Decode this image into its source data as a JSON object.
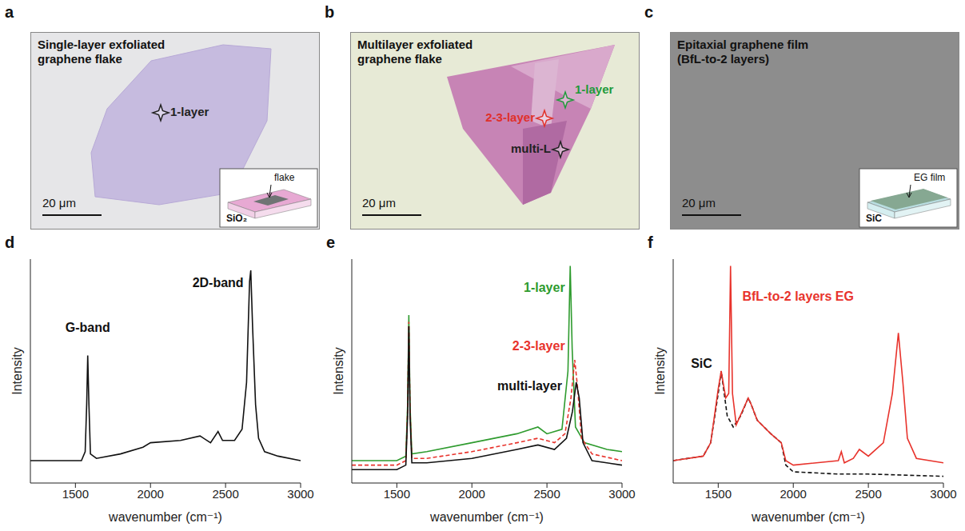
{
  "images": [
    {
      "letter": "a",
      "title": "Single-layer exfoliated graphene flake",
      "scale_bar": "20 μm",
      "labels": [
        {
          "text": "1-layer",
          "color": "#222222"
        }
      ],
      "inset": {
        "film": "flake",
        "substrate": "SiO₂"
      }
    },
    {
      "letter": "b",
      "title": "Multilayer exfoliated graphene flake",
      "scale_bar": "20 μm",
      "labels": [
        {
          "text": "1-layer",
          "color": "#1f9a3a"
        },
        {
          "text": "2-3-layer",
          "color": "#e0302a"
        },
        {
          "text": "multi-L",
          "color": "#222222"
        }
      ]
    },
    {
      "letter": "c",
      "title": "Epitaxial graphene film (BfL-to-2 layers)",
      "scale_bar": "20 μm",
      "labels": [],
      "inset": {
        "film": "EG film",
        "substrate": "SiC"
      }
    }
  ],
  "chart_data": [
    {
      "letter": "d",
      "type": "line",
      "xlabel": "wavenumber (cm⁻¹)",
      "ylabel": "Intensity",
      "xlim": [
        1200,
        3000
      ],
      "xticks": [
        1500,
        2000,
        2500,
        3000
      ],
      "ylim": [
        0,
        100
      ],
      "tick_labels": "x",
      "annotations": [
        "G-band",
        "2D-band"
      ],
      "series": [
        {
          "color": "#111111",
          "line_style": "solid",
          "x": [
            1200,
            1400,
            1540,
            1565,
            1575,
            1582,
            1590,
            1600,
            1640,
            1800,
            1950,
            2000,
            2200,
            2330,
            2400,
            2450,
            2480,
            2560,
            2610,
            2640,
            2660,
            2668,
            2680,
            2700,
            2720,
            2760,
            2850,
            3000
          ],
          "values": [
            10,
            10,
            10,
            14,
            35,
            57,
            35,
            13,
            11,
            13,
            16,
            18,
            19,
            21,
            18,
            23,
            19,
            19,
            24,
            45,
            90,
            95,
            70,
            35,
            20,
            14,
            12,
            10
          ]
        }
      ]
    },
    {
      "letter": "e",
      "type": "line",
      "xlabel": "wavenumber (cm⁻¹)",
      "ylabel": "Intensity",
      "xlim": [
        1200,
        3000
      ],
      "xticks": [
        1500,
        2000,
        2500,
        3000
      ],
      "ylim": [
        0,
        100
      ],
      "tick_labels": "x",
      "series": [
        {
          "name": "1-layer",
          "color": "#2e9b2e",
          "line_style": "solid",
          "x": [
            1200,
            1500,
            1560,
            1572,
            1580,
            1588,
            1600,
            1700,
            2000,
            2300,
            2440,
            2500,
            2600,
            2640,
            2655,
            2668,
            2690,
            2750,
            2900,
            3000
          ],
          "values": [
            10,
            10,
            12,
            35,
            75,
            35,
            13,
            14,
            18,
            22,
            25,
            22,
            24,
            50,
            97,
            60,
            25,
            18,
            15,
            14
          ]
        },
        {
          "name": "2-3-layer",
          "color": "#e8332c",
          "line_style": "dashed",
          "x": [
            1200,
            1500,
            1560,
            1572,
            1580,
            1588,
            1600,
            1700,
            2000,
            2300,
            2440,
            2550,
            2620,
            2660,
            2685,
            2705,
            2730,
            2800,
            3000
          ],
          "values": [
            8,
            8,
            10,
            33,
            72,
            33,
            11,
            11,
            14,
            18,
            20,
            18,
            22,
            38,
            55,
            42,
            20,
            13,
            10
          ]
        },
        {
          "name": "multi-layer",
          "color": "#111111",
          "line_style": "solid",
          "x": [
            1200,
            1500,
            1560,
            1572,
            1580,
            1588,
            1600,
            1700,
            2000,
            2300,
            2440,
            2550,
            2630,
            2670,
            2695,
            2715,
            2740,
            2800,
            3000
          ],
          "values": [
            6,
            6,
            8,
            30,
            70,
            30,
            9,
            9,
            11,
            15,
            17,
            15,
            20,
            32,
            45,
            38,
            18,
            10,
            8
          ]
        }
      ]
    },
    {
      "letter": "f",
      "type": "line",
      "xlabel": "wavenumber (cm⁻¹)",
      "ylabel": "Intensity",
      "xlim": [
        1200,
        3000
      ],
      "xticks": [
        1500,
        2000,
        2500,
        3000
      ],
      "ylim": [
        0,
        100
      ],
      "tick_labels": "x",
      "series": [
        {
          "name": "SiC",
          "color": "#111111",
          "line_style": "dashed",
          "x": [
            1200,
            1400,
            1450,
            1500,
            1520,
            1540,
            1560,
            1600,
            1650,
            1700,
            1720,
            1760,
            1850,
            1920,
            1950,
            2000,
            2300,
            2500,
            3000
          ],
          "values": [
            10,
            12,
            18,
            40,
            50,
            40,
            30,
            25,
            30,
            38,
            35,
            28,
            22,
            18,
            8,
            5,
            4,
            4,
            3
          ]
        },
        {
          "name": "BfL-to-2 layers EG",
          "color": "#e8332c",
          "line_style": "solid",
          "x": [
            1200,
            1400,
            1450,
            1500,
            1520,
            1550,
            1570,
            1582,
            1595,
            1620,
            1700,
            1720,
            1760,
            1850,
            1920,
            1950,
            2000,
            2300,
            2320,
            2340,
            2400,
            2440,
            2500,
            2600,
            2660,
            2700,
            2730,
            2760,
            2820,
            3000
          ],
          "values": [
            10,
            12,
            18,
            42,
            50,
            38,
            40,
            97,
            40,
            26,
            38,
            35,
            28,
            22,
            18,
            10,
            8,
            10,
            14,
            9,
            11,
            15,
            12,
            18,
            40,
            67,
            45,
            20,
            11,
            9
          ]
        }
      ]
    }
  ]
}
